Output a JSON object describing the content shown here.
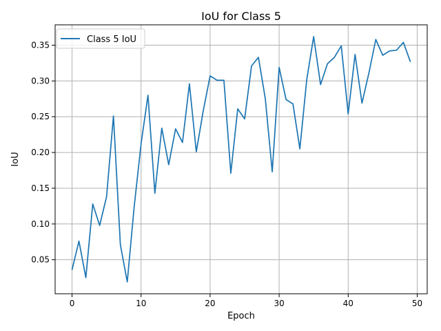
{
  "chart_data": {
    "type": "line",
    "title": "IoU for Class 5",
    "xlabel": "Epoch",
    "ylabel": "IoU",
    "xlim": [
      -2.45,
      51.45
    ],
    "ylim": [
      0.0024,
      0.3785
    ],
    "xticks": [
      0,
      10,
      20,
      30,
      40,
      50
    ],
    "xtick_labels": [
      "0",
      "10",
      "20",
      "30",
      "40",
      "50"
    ],
    "yticks": [
      0.05,
      0.1,
      0.15,
      0.2,
      0.25,
      0.3,
      0.35
    ],
    "ytick_labels": [
      "0.05",
      "0.10",
      "0.15",
      "0.20",
      "0.25",
      "0.30",
      "0.35"
    ],
    "grid": true,
    "legend_position": "upper-left",
    "x": [
      0,
      1,
      2,
      3,
      4,
      5,
      6,
      7,
      8,
      9,
      10,
      11,
      12,
      13,
      14,
      15,
      16,
      17,
      18,
      19,
      20,
      21,
      22,
      23,
      24,
      25,
      26,
      27,
      28,
      29,
      30,
      31,
      32,
      33,
      34,
      35,
      36,
      37,
      38,
      39,
      40,
      41,
      42,
      43,
      44,
      45,
      46,
      47,
      48,
      49
    ],
    "series": [
      {
        "name": "Class 5 IoU",
        "color": "#1f77b4",
        "values": [
          0.036,
          0.076,
          0.025,
          0.128,
          0.098,
          0.138,
          0.251,
          0.071,
          0.019,
          0.124,
          0.212,
          0.28,
          0.143,
          0.234,
          0.183,
          0.233,
          0.214,
          0.296,
          0.201,
          0.258,
          0.307,
          0.301,
          0.301,
          0.171,
          0.261,
          0.247,
          0.321,
          0.333,
          0.275,
          0.173,
          0.319,
          0.274,
          0.268,
          0.205,
          0.302,
          0.362,
          0.295,
          0.324,
          0.333,
          0.349,
          0.254,
          0.337,
          0.269,
          0.311,
          0.358,
          0.336,
          0.342,
          0.343,
          0.354,
          0.327
        ]
      }
    ]
  }
}
